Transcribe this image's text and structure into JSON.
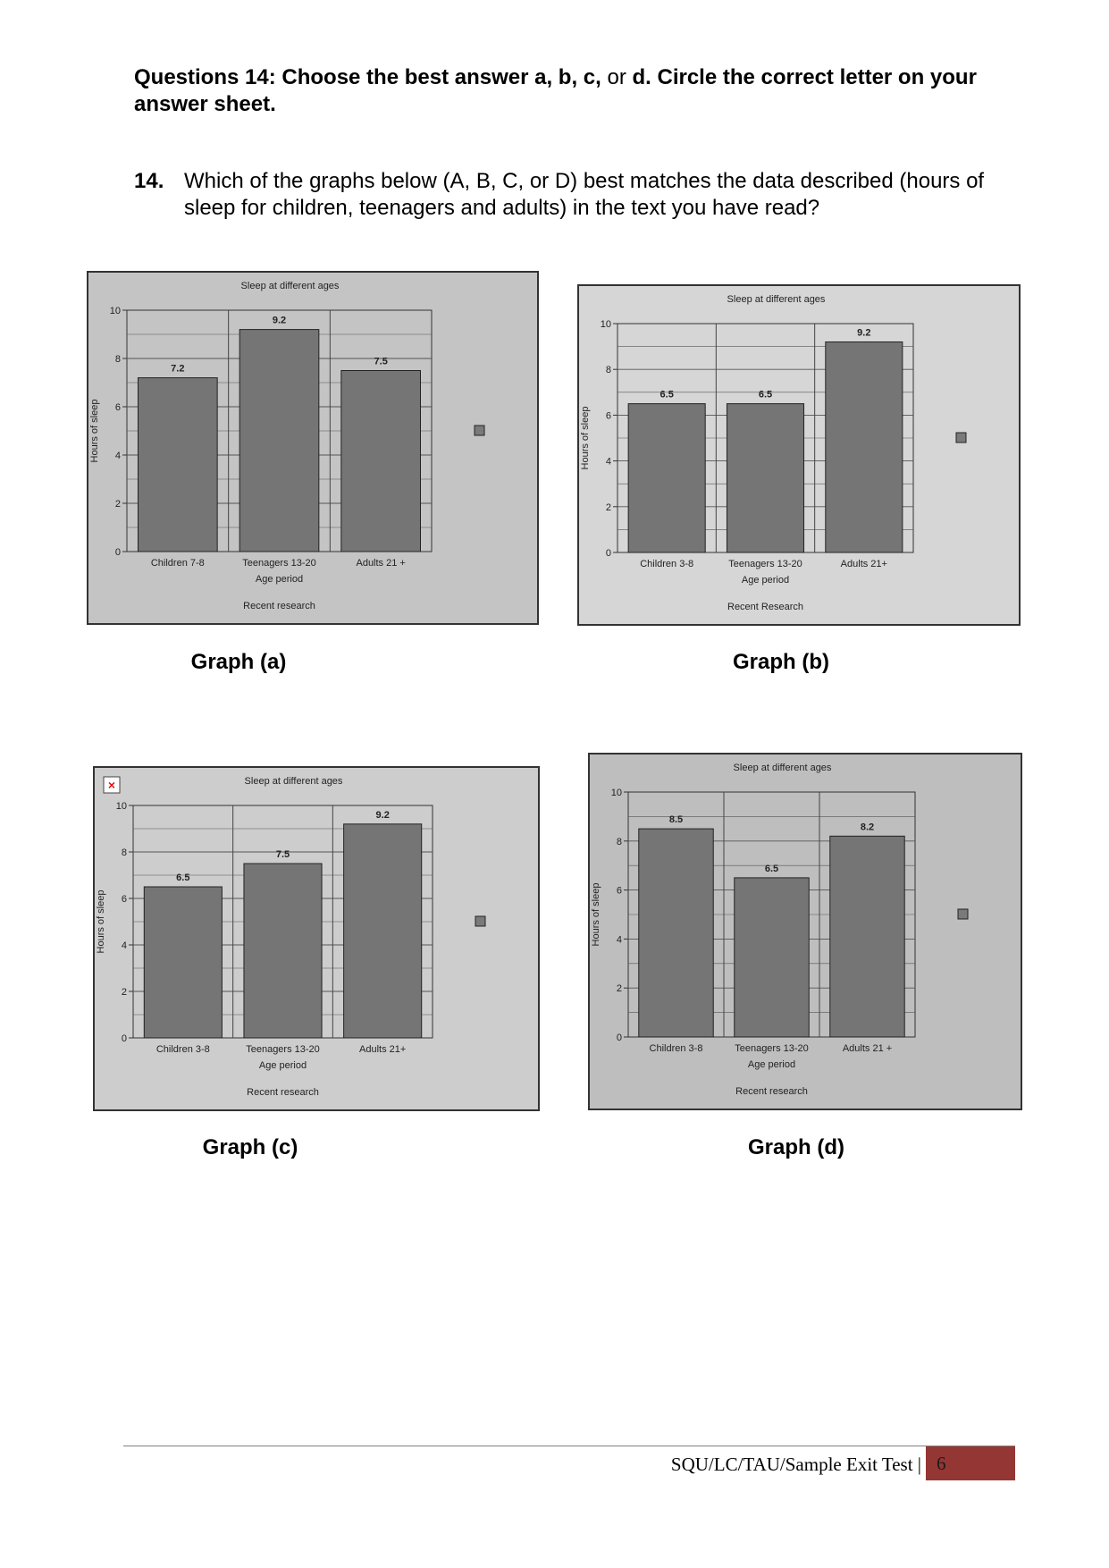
{
  "instructions": {
    "part1": "Questions 14: Choose the best answer a, b, c,",
    "part2": " or ",
    "part3": "d. Circle the correct letter on your answer sheet."
  },
  "question": {
    "number": "14.",
    "text": "Which of the graphs below (A, B, C, or D) best matches the data described (hours of sleep for children, teenagers and adults) in the text you have read?"
  },
  "graphs": [
    {
      "caption": "Graph (a)",
      "background": "#c4c4c4",
      "show_broken_icon": false,
      "chart_data": {
        "type": "bar",
        "title": "Sleep at different ages",
        "categories": [
          "Children 7-8",
          "Teenagers 13-20",
          "Adults 21 +"
        ],
        "values": [
          7.2,
          9.2,
          7.5
        ],
        "data_labels": [
          "7.2",
          "9.2",
          "7.5"
        ],
        "xlabel": "Age period",
        "ylabel": "Hours of sleep",
        "footnote": "Recent research",
        "ylim": [
          0,
          10
        ],
        "yticks": [
          0,
          2,
          4,
          6,
          8,
          10
        ],
        "grid": true,
        "legend": "right"
      }
    },
    {
      "caption": "Graph (b)",
      "background": "#d6d6d6",
      "show_broken_icon": false,
      "chart_data": {
        "type": "bar",
        "title": "Sleep at different ages",
        "categories": [
          "Children 3-8",
          "Teenagers 13-20",
          "Adults 21+"
        ],
        "values": [
          6.5,
          6.5,
          9.2
        ],
        "data_labels": [
          "6.5",
          "6.5",
          "9.2"
        ],
        "xlabel": "Age period",
        "ylabel": "Hours of sleep",
        "footnote": "Recent Research",
        "ylim": [
          0,
          10
        ],
        "yticks": [
          0,
          2,
          4,
          6,
          8,
          10
        ],
        "grid": true,
        "legend": "right"
      }
    },
    {
      "caption": "Graph (c)",
      "background": "#cdcdcd",
      "show_broken_icon": true,
      "chart_data": {
        "type": "bar",
        "title": "Sleep at different ages",
        "categories": [
          "Children 3-8",
          "Teenagers 13-20",
          "Adults 21+"
        ],
        "values": [
          6.5,
          7.5,
          9.2
        ],
        "data_labels": [
          "6.5",
          "7.5",
          "9.2"
        ],
        "xlabel": "Age period",
        "ylabel": "Hours of sleep",
        "footnote": "Recent research",
        "ylim": [
          0,
          10
        ],
        "yticks": [
          0,
          2,
          4,
          6,
          8,
          10
        ],
        "grid": true,
        "legend": "right"
      }
    },
    {
      "caption": "Graph (d)",
      "background": "#bebebe",
      "show_broken_icon": false,
      "chart_data": {
        "type": "bar",
        "title": "Sleep at different ages",
        "categories": [
          "Children 3-8",
          "Teenagers 13-20",
          "Adults 21 +"
        ],
        "values": [
          8.5,
          6.5,
          8.2
        ],
        "data_labels": [
          "8.5",
          "6.5",
          "8.2"
        ],
        "xlabel": "Age period",
        "ylabel": "Hours of sleep",
        "footnote": "Recent research",
        "ylim": [
          0,
          10
        ],
        "yticks": [
          0,
          2,
          4,
          6,
          8,
          10
        ],
        "grid": true,
        "legend": "right"
      }
    }
  ],
  "footer": {
    "text": "SQU/LC/TAU/Sample Exit Test |",
    "page": "6",
    "accent_color": "#943634"
  }
}
